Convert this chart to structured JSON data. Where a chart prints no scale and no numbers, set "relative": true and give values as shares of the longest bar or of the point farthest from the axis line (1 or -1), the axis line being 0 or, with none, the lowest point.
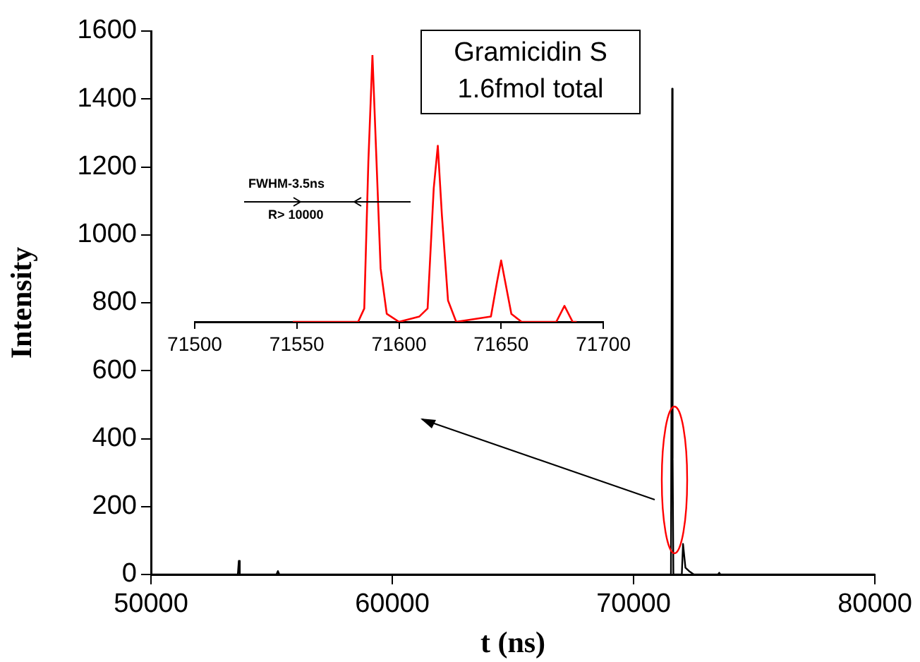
{
  "chart_data": [
    {
      "type": "line",
      "xlabel": "t (ns)",
      "ylabel": "Intensity",
      "x": [
        50000,
        53600,
        53640,
        53680,
        55200,
        55260,
        55320,
        71400,
        71550,
        71600,
        71620,
        71650,
        72000,
        72050,
        72150,
        72300,
        72500,
        73500,
        73550,
        73600,
        80000
      ],
      "series": [
        {
          "color": "#000000",
          "values": [
            0,
            0,
            40,
            0,
            0,
            10,
            0,
            0,
            0,
            1430,
            340,
            0,
            0,
            90,
            20,
            10,
            0,
            0,
            5,
            0,
            0
          ]
        }
      ],
      "xlim": [
        50000,
        80000
      ],
      "xticks": [
        50000,
        60000,
        70000,
        80000
      ],
      "ylim": [
        0,
        1600
      ],
      "yticks": [
        0,
        200,
        400,
        600,
        800,
        1000,
        1200,
        1400,
        1600
      ],
      "annotations": [
        "Gramicidin S",
        "1.6fmol total"
      ]
    },
    {
      "type": "line",
      "x": [
        71548,
        71570,
        71580,
        71583,
        71585,
        71587,
        71589,
        71591,
        71594,
        71600,
        71610,
        71614,
        71617,
        71619,
        71621,
        71624,
        71628,
        71645,
        71648,
        71650,
        71652,
        71655,
        71660,
        71677,
        71681,
        71685,
        71687
      ],
      "series": [
        {
          "color": "#ff0000",
          "values": [
            0,
            0,
            0,
            0.05,
            0.6,
            1,
            0.6,
            0.2,
            0.03,
            0,
            0.02,
            0.05,
            0.5,
            0.66,
            0.4,
            0.08,
            0,
            0.02,
            0.15,
            0.23,
            0.15,
            0.03,
            0,
            0,
            0.06,
            0,
            0
          ]
        }
      ],
      "relative": true,
      "xlim": [
        71500,
        71700
      ],
      "xticks": [
        71500,
        71550,
        71600,
        71650,
        71700
      ],
      "tick_labels": "x",
      "annotations": [
        "FWHM-3.5ns",
        "R> 10000"
      ]
    }
  ]
}
